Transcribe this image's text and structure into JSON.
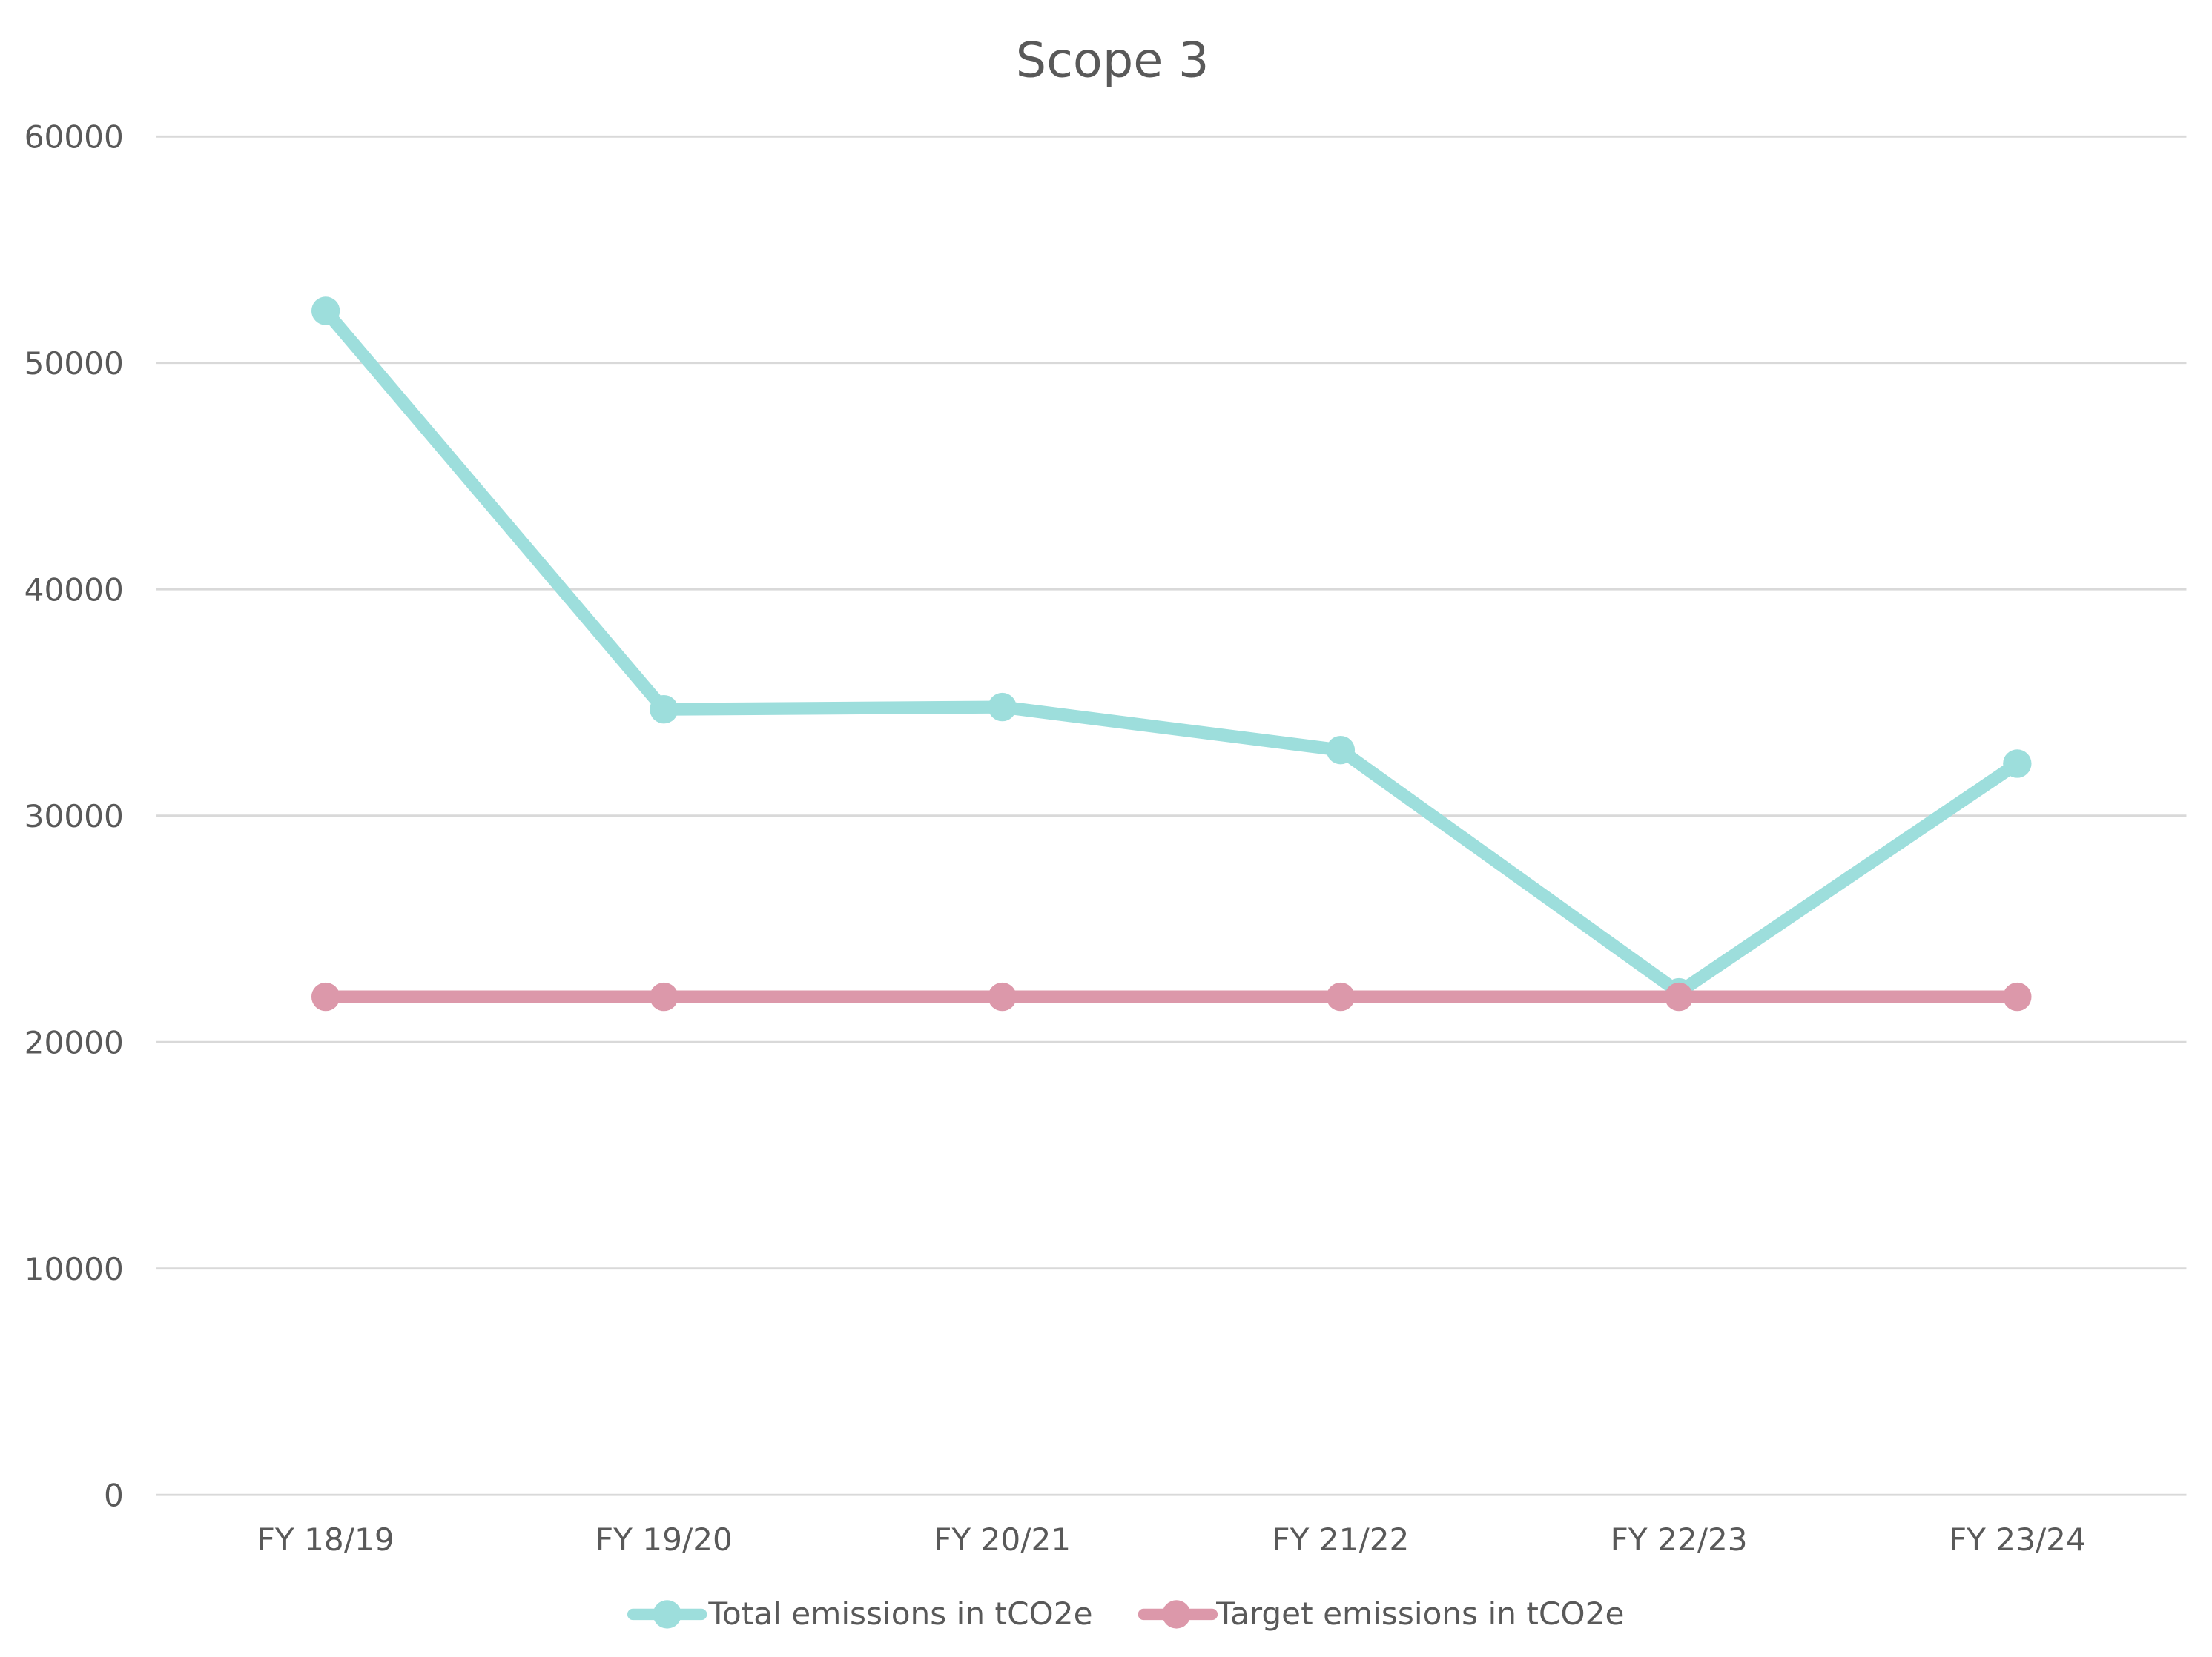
{
  "chart_data": {
    "type": "line",
    "title": "Scope 3",
    "xlabel": "",
    "ylabel": "",
    "categories": [
      "FY 18/19",
      "FY 19/20",
      "FY 20/21",
      "FY 21/22",
      "FY 22/23",
      "FY 23/24"
    ],
    "series": [
      {
        "name": "Total emissions in tCO2e",
        "color": "#9ddedc",
        "values": [
          52300,
          34700,
          34800,
          32900,
          22200,
          32300
        ]
      },
      {
        "name": "Target emissions in tCO2e",
        "color": "#dc98aa",
        "values": [
          22000,
          22000,
          22000,
          22000,
          22000,
          22000
        ]
      }
    ],
    "ylim": [
      0,
      60000
    ],
    "yticks": [
      0,
      10000,
      20000,
      30000,
      40000,
      50000,
      60000
    ],
    "ytick_labels": [
      "0",
      "10000",
      "20000",
      "30000",
      "40000",
      "50000",
      "60000"
    ],
    "grid": true,
    "legend_position": "bottom",
    "markers": true
  },
  "colors": {
    "grid": "#d9d9d9",
    "text": "#595959",
    "background": "#ffffff"
  }
}
